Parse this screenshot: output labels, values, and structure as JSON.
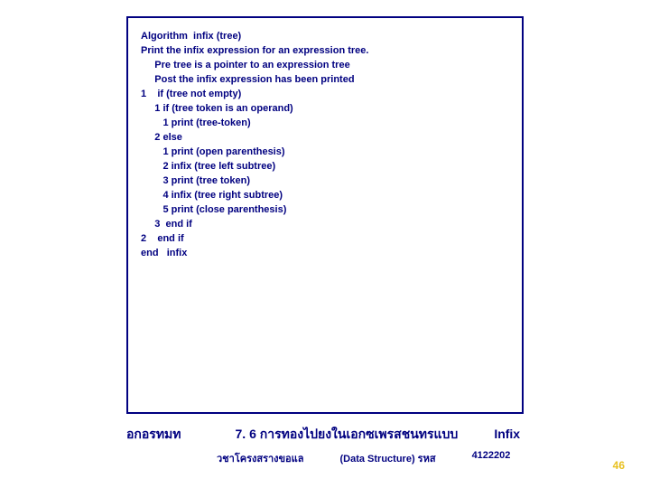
{
  "box": {
    "l1": "Algorithm  infix (tree)",
    "l2": "Print the infix expression for an expression tree.",
    "l3": "     Pre tree is a pointer to an expression tree",
    "l4": "     Post the infix expression has been printed",
    "l5": "1    if (tree not empty)",
    "l6": "     1 if (tree token is an operand)",
    "l7": "        1 print (tree-token)",
    "l8": "     2 else",
    "l9": "        1 print (open parenthesis)",
    "l10": "        2 infix (tree left subtree)",
    "l11": "        3 print (tree token)",
    "l12": "        4 infix (tree right subtree)",
    "l13": "        5 print (close parenthesis)",
    "l14": "     3  end if",
    "l15": "2    end if",
    "l16": "end   infix"
  },
  "caption": {
    "left": "อกอรทมท",
    "mid": "7. 6 การทองไปยงในเอกซเพรสชนทรแบบ",
    "right": "Infix"
  },
  "footer": {
    "a": "วชาโครงสรางขอแล",
    "b": "(Data Structure) รหส",
    "c": "4122202"
  },
  "page": "46",
  "colors": {
    "primary": "#000080",
    "page_num": "#e8c020",
    "bg": "#ffffff"
  }
}
